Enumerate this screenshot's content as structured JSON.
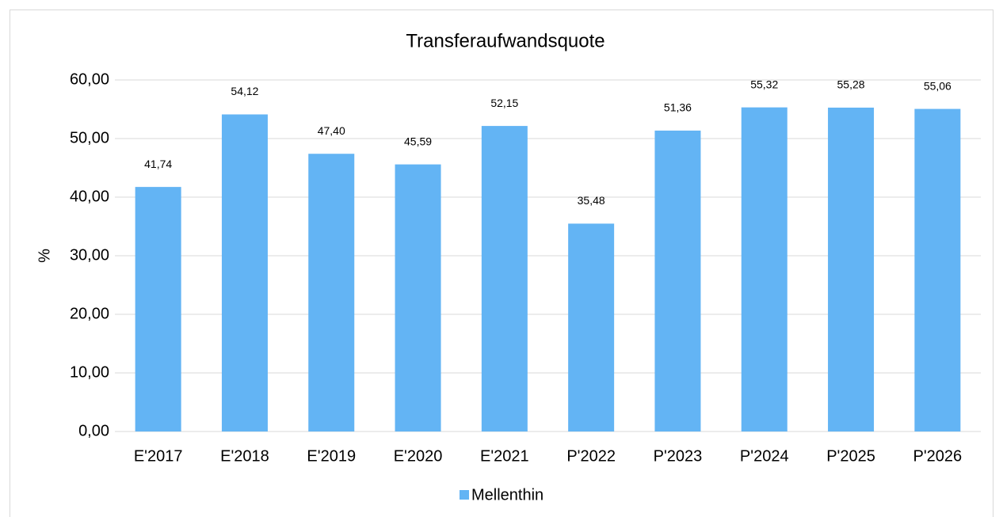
{
  "chart_data": {
    "type": "bar",
    "title": "Transferaufwandsquote",
    "y_label": "%",
    "categories": [
      "E'2017",
      "E'2018",
      "E'2019",
      "E'2020",
      "E'2021",
      "P'2022",
      "P'2023",
      "P'2024",
      "P'2025",
      "P'2026"
    ],
    "series": [
      {
        "name": "Mellenthin",
        "color": "#63b4f4",
        "values": [
          41.74,
          54.12,
          47.4,
          45.59,
          52.15,
          35.48,
          51.36,
          55.32,
          55.28,
          55.06
        ],
        "value_labels": [
          "41,74",
          "54,12",
          "47,40",
          "45,59",
          "52,15",
          "35,48",
          "51,36",
          "55,32",
          "55,28",
          "55,06"
        ]
      }
    ],
    "ylim": [
      0,
      60
    ],
    "yticks": [
      {
        "value": 0,
        "label": "0,00"
      },
      {
        "value": 10,
        "label": "10,00"
      },
      {
        "value": 20,
        "label": "20,00"
      },
      {
        "value": 30,
        "label": "30,00"
      },
      {
        "value": 40,
        "label": "40,00"
      },
      {
        "value": 50,
        "label": "50,00"
      },
      {
        "value": 60,
        "label": "60,00"
      }
    ],
    "grid": true,
    "legend": "bottom"
  }
}
